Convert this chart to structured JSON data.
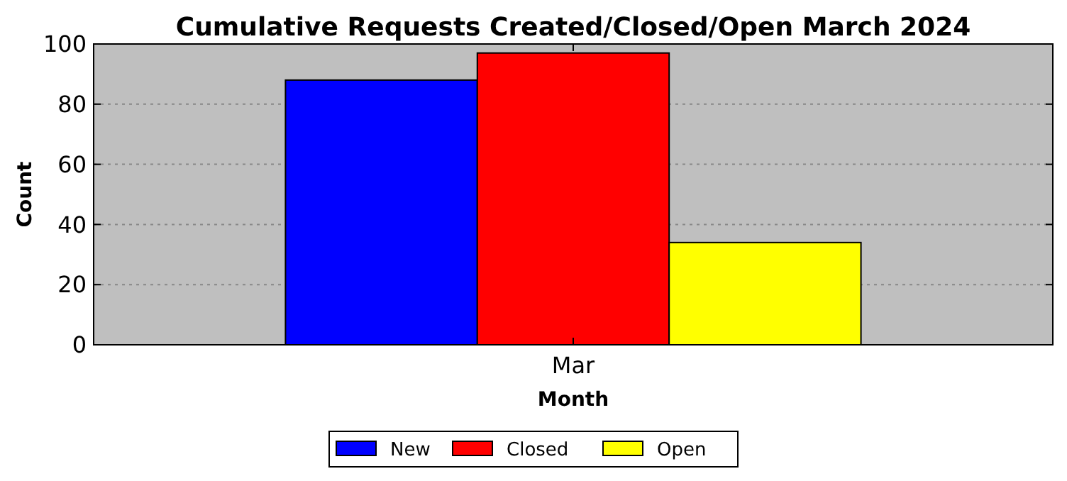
{
  "chart_data": {
    "type": "bar",
    "title": "Cumulative Requests Created/Closed/Open March 2024",
    "xlabel": "Month",
    "ylabel": "Count",
    "categories": [
      "Mar"
    ],
    "series": [
      {
        "name": "New",
        "color": "#0000ff",
        "values": [
          88
        ]
      },
      {
        "name": "Closed",
        "color": "#ff0000",
        "values": [
          97
        ]
      },
      {
        "name": "Open",
        "color": "#ffff00",
        "values": [
          34
        ]
      }
    ],
    "ylim": [
      0,
      100
    ],
    "yticks": [
      0,
      20,
      40,
      60,
      80,
      100
    ],
    "grid": "y",
    "legend": "bottom"
  }
}
